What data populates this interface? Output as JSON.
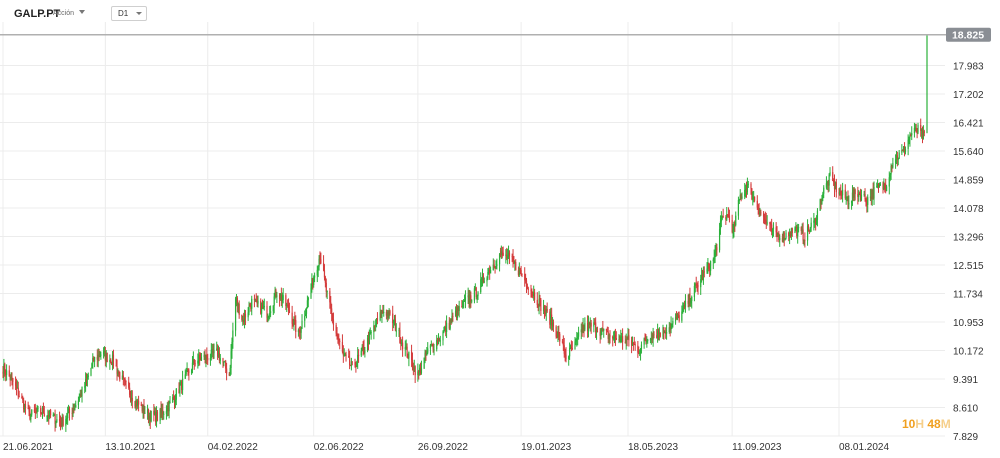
{
  "toolbar": {
    "symbol": "GALP.PT",
    "symbol_type": "Acción",
    "timeframe": "D1"
  },
  "price_label": "18.825",
  "timer": {
    "hours": "10",
    "hours_unit": "H",
    "minutes": "48",
    "minutes_unit": "M"
  },
  "colors": {
    "up": "#2ab03a",
    "down": "#d43a3a",
    "grid": "#ececec",
    "price_line": "#b0b0b0",
    "price_box": "#8a8e94",
    "timer": "#f0a020"
  },
  "chart_data": {
    "type": "candlestick",
    "title": "",
    "xlabel": "",
    "ylabel": "",
    "ylim": [
      7.829,
      19.3
    ],
    "y_ticks": [
      "17.983",
      "17.202",
      "16.421",
      "15.640",
      "14.859",
      "14.078",
      "13.296",
      "12.515",
      "11.734",
      "10.953",
      "10.172",
      "9.391",
      "8.610",
      "7.829"
    ],
    "x_ticks": [
      "21.06.2021",
      "13.10.2021",
      "04.02.2022",
      "02.06.2022",
      "26.09.2022",
      "19.01.2023",
      "18.05.2023",
      "11.09.2023",
      "08.01.2024"
    ],
    "last_price": 18.825,
    "grid": true,
    "anchors": [
      [
        "21.06.2021",
        9.7
      ],
      [
        "02.07.2021",
        9.3
      ],
      [
        "20.07.2021",
        8.4
      ],
      [
        "05.08.2021",
        8.5
      ],
      [
        "25.08.2021",
        8.2
      ],
      [
        "08.09.2021",
        8.6
      ],
      [
        "20.09.2021",
        9.2
      ],
      [
        "30.09.2021",
        9.9
      ],
      [
        "08.10.2021",
        10.1
      ],
      [
        "21.10.2021",
        9.9
      ],
      [
        "02.11.2021",
        9.3
      ],
      [
        "15.11.2021",
        8.8
      ],
      [
        "30.11.2021",
        8.4
      ],
      [
        "10.12.2021",
        8.35
      ],
      [
        "24.12.2021",
        8.7
      ],
      [
        "10.01.2022",
        9.4
      ],
      [
        "21.01.2022",
        9.9
      ],
      [
        "04.02.2022",
        10.0
      ],
      [
        "15.02.2022",
        10.1
      ],
      [
        "28.02.2022",
        9.5
      ],
      [
        "07.03.2022",
        11.6
      ],
      [
        "15.03.2022",
        11.0
      ],
      [
        "25.03.2022",
        11.5
      ],
      [
        "12.04.2022",
        11.2
      ],
      [
        "22.04.2022",
        11.8
      ],
      [
        "05.05.2022",
        11.3
      ],
      [
        "16.05.2022",
        10.6
      ],
      [
        "25.05.2022",
        11.4
      ],
      [
        "02.06.2022",
        12.2
      ],
      [
        "09.06.2022",
        12.8
      ],
      [
        "16.06.2022",
        11.8
      ],
      [
        "23.06.2022",
        11.0
      ],
      [
        "05.07.2022",
        10.0
      ],
      [
        "15.07.2022",
        9.7
      ],
      [
        "28.07.2022",
        10.2
      ],
      [
        "10.08.2022",
        10.9
      ],
      [
        "20.08.2022",
        11.3
      ],
      [
        "31.08.2022",
        10.9
      ],
      [
        "10.09.2022",
        10.3
      ],
      [
        "26.09.2022",
        9.5
      ],
      [
        "08.10.2022",
        10.2
      ],
      [
        "20.10.2022",
        10.5
      ],
      [
        "05.11.2022",
        11.1
      ],
      [
        "18.11.2022",
        11.5
      ],
      [
        "01.12.2022",
        11.8
      ],
      [
        "12.12.2022",
        12.3
      ],
      [
        "27.12.2022",
        12.8
      ],
      [
        "05.01.2023",
        12.7
      ],
      [
        "19.01.2023",
        12.3
      ],
      [
        "31.01.2023",
        11.8
      ],
      [
        "10.02.2023",
        11.4
      ],
      [
        "21.02.2023",
        11.0
      ],
      [
        "03.03.2023",
        10.5
      ],
      [
        "10.03.2023",
        10.0
      ],
      [
        "20.03.2023",
        10.3
      ],
      [
        "29.03.2023",
        10.8
      ],
      [
        "10.04.2023",
        10.85
      ],
      [
        "24.04.2023",
        10.6
      ],
      [
        "05.05.2023",
        10.5
      ],
      [
        "18.05.2023",
        10.45
      ],
      [
        "30.05.2023",
        10.2
      ],
      [
        "12.06.2023",
        10.6
      ],
      [
        "26.06.2023",
        10.7
      ],
      [
        "07.07.2023",
        10.9
      ],
      [
        "17.07.2023",
        11.2
      ],
      [
        "28.07.2023",
        11.7
      ],
      [
        "09.08.2023",
        12.2
      ],
      [
        "22.08.2023",
        12.7
      ],
      [
        "31.08.2023",
        13.8
      ],
      [
        "08.09.2023",
        13.9
      ],
      [
        "11.09.2023",
        13.3
      ],
      [
        "20.09.2023",
        14.4
      ],
      [
        "28.09.2023",
        14.7
      ],
      [
        "06.10.2023",
        14.3
      ],
      [
        "16.10.2023",
        13.8
      ],
      [
        "26.10.2023",
        13.4
      ],
      [
        "07.11.2023",
        13.3
      ],
      [
        "20.11.2023",
        13.5
      ],
      [
        "30.11.2023",
        13.3
      ],
      [
        "12.12.2023",
        13.7
      ],
      [
        "21.12.2023",
        14.5
      ],
      [
        "29.12.2023",
        14.9
      ],
      [
        "08.01.2024",
        14.5
      ],
      [
        "18.01.2024",
        14.3
      ],
      [
        "29.01.2024",
        14.5
      ],
      [
        "08.02.2024",
        14.3
      ],
      [
        "19.02.2024",
        14.6
      ],
      [
        "29.02.2024",
        14.7
      ],
      [
        "08.03.2024",
        15.4
      ],
      [
        "19.03.2024",
        15.6
      ],
      [
        "28.03.2024",
        16.1
      ],
      [
        "05.04.2024",
        16.2
      ],
      [
        "12.04.2024",
        16.0
      ],
      [
        "15.04.2024",
        18.8
      ]
    ]
  }
}
